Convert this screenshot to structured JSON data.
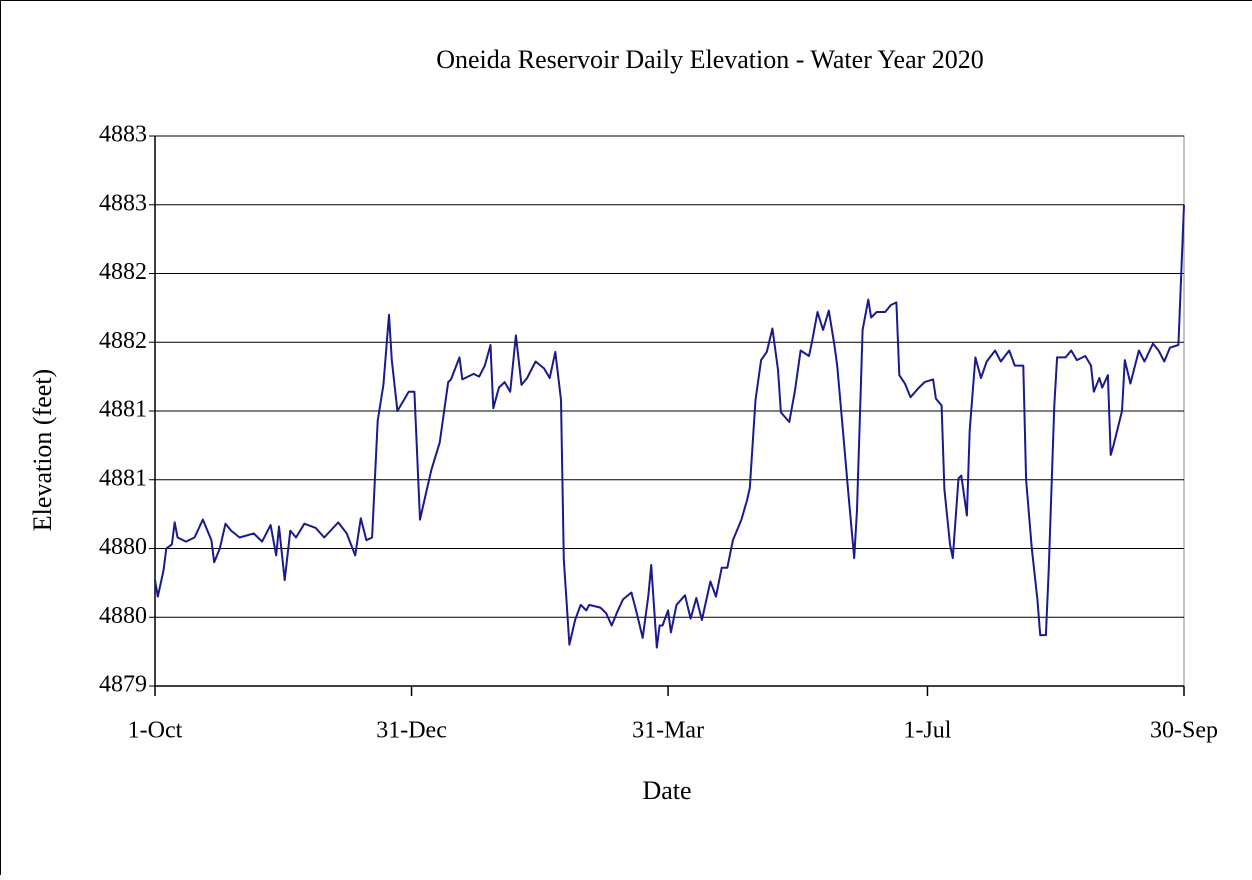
{
  "chart_data": {
    "type": "line",
    "title": "Oneida Reservoir Daily Elevation - Water Year  2020",
    "x_label": "Date",
    "y_label": "Elevation (feet)",
    "xlim": [
      0,
      365
    ],
    "xticks": [
      {
        "value": 0,
        "label": "1-Oct"
      },
      {
        "value": 91,
        "label": "31-Dec"
      },
      {
        "value": 182,
        "label": "31-Mar"
      },
      {
        "value": 274,
        "label": "1-Jul"
      },
      {
        "value": 365,
        "label": "30-Sep"
      }
    ],
    "ylim": [
      4879,
      4883
    ],
    "yticks": [
      4879,
      {
        "value": 4879.5,
        "label": "4880"
      },
      4880,
      {
        "value": 4880.5,
        "label": "4881"
      },
      4881,
      {
        "value": 4881.5,
        "label": "4882"
      },
      4882,
      {
        "value": 4882.5,
        "label": "4883"
      },
      4883
    ],
    "grid": true,
    "series": [
      {
        "color": "#1a1a8c",
        "x": [
          0,
          1,
          3,
          4,
          6,
          7,
          8,
          11,
          14,
          17,
          20,
          21,
          23,
          25,
          27,
          30,
          35,
          38,
          41,
          43,
          44,
          46,
          48,
          50,
          53,
          57,
          60,
          65,
          68,
          71,
          73,
          75,
          77,
          79,
          81,
          83,
          84,
          86,
          88,
          90,
          92,
          94,
          96,
          98,
          101,
          104,
          105,
          108,
          109,
          113,
          115,
          117,
          119,
          120,
          122,
          124,
          126,
          128,
          130,
          132,
          135,
          138,
          140,
          142,
          144,
          145,
          147,
          149,
          151,
          153,
          154,
          158,
          160,
          162,
          164,
          166,
          169,
          171,
          173,
          175,
          176,
          178,
          179,
          180,
          182,
          183,
          185,
          188,
          190,
          192,
          194,
          197,
          199,
          201,
          203,
          205,
          208,
          210,
          211,
          213,
          215,
          217,
          219,
          221,
          222,
          225,
          227,
          229,
          232,
          233,
          235,
          237,
          239,
          241,
          242,
          244,
          246,
          248,
          249,
          251,
          253,
          254,
          256,
          259,
          261,
          263,
          264,
          266,
          268,
          271,
          273,
          276,
          277,
          279,
          280,
          282,
          283,
          285,
          286,
          288,
          289,
          291,
          293,
          295,
          298,
          300,
          303,
          305,
          308,
          309,
          311,
          313,
          314,
          316,
          317,
          319,
          320,
          323,
          325,
          327,
          330,
          332,
          333,
          335,
          336,
          338,
          339,
          340,
          343,
          344,
          346,
          349,
          351,
          354,
          356,
          358,
          360,
          363,
          365
        ],
        "values": [
          4879.77,
          4879.65,
          4879.84,
          4880.0,
          4880.03,
          4880.19,
          4880.08,
          4880.05,
          4880.08,
          4880.21,
          4880.06,
          4879.9,
          4880.0,
          4880.18,
          4880.13,
          4880.08,
          4880.11,
          4880.05,
          4880.17,
          4879.95,
          4880.16,
          4879.77,
          4880.13,
          4880.08,
          4880.18,
          4880.15,
          4880.08,
          4880.19,
          4880.11,
          4879.95,
          4880.22,
          4880.06,
          4880.08,
          4880.93,
          4881.19,
          4881.7,
          4881.37,
          4881.0,
          4881.07,
          4881.14,
          4881.14,
          4880.21,
          4880.39,
          4880.57,
          4880.77,
          4881.21,
          4881.23,
          4881.39,
          4881.23,
          4881.27,
          4881.25,
          4881.33,
          4881.48,
          4881.02,
          4881.17,
          4881.21,
          4881.14,
          4881.55,
          4881.19,
          4881.24,
          4881.36,
          4881.31,
          4881.24,
          4881.43,
          4881.08,
          4879.92,
          4879.3,
          4879.48,
          4879.59,
          4879.55,
          4879.59,
          4879.57,
          4879.53,
          4879.44,
          4879.54,
          4879.63,
          4879.68,
          4879.52,
          4879.35,
          4879.66,
          4879.88,
          4879.28,
          4879.44,
          4879.44,
          4879.55,
          4879.39,
          4879.59,
          4879.66,
          4879.49,
          4879.64,
          4879.48,
          4879.76,
          4879.65,
          4879.86,
          4879.86,
          4880.06,
          4880.21,
          4880.35,
          4880.44,
          4881.08,
          4881.37,
          4881.43,
          4881.6,
          4881.3,
          4880.99,
          4880.92,
          4881.15,
          4881.44,
          4881.4,
          4881.5,
          4881.72,
          4881.59,
          4881.73,
          4881.48,
          4881.33,
          4880.86,
          4880.39,
          4879.93,
          4880.28,
          4881.59,
          4881.81,
          4881.68,
          4881.72,
          4881.72,
          4881.77,
          4881.79,
          4881.26,
          4881.2,
          4881.1,
          4881.17,
          4881.21,
          4881.23,
          4881.09,
          4881.04,
          4880.43,
          4880.03,
          4879.93,
          4880.51,
          4880.53,
          4880.24,
          4880.86,
          4881.39,
          4881.24,
          4881.36,
          4881.44,
          4881.36,
          4881.44,
          4881.33,
          4881.33,
          4880.5,
          4880.0,
          4879.63,
          4879.37,
          4879.37,
          4879.84,
          4881.04,
          4881.39,
          4881.39,
          4881.44,
          4881.37,
          4881.4,
          4881.33,
          4881.14,
          4881.24,
          4881.17,
          4881.26,
          4880.68,
          4880.75,
          4881.0,
          4881.37,
          4881.2,
          4881.44,
          4881.36,
          4881.49,
          4881.44,
          4881.36,
          4881.46,
          4881.48,
          4882.5
        ]
      }
    ]
  }
}
